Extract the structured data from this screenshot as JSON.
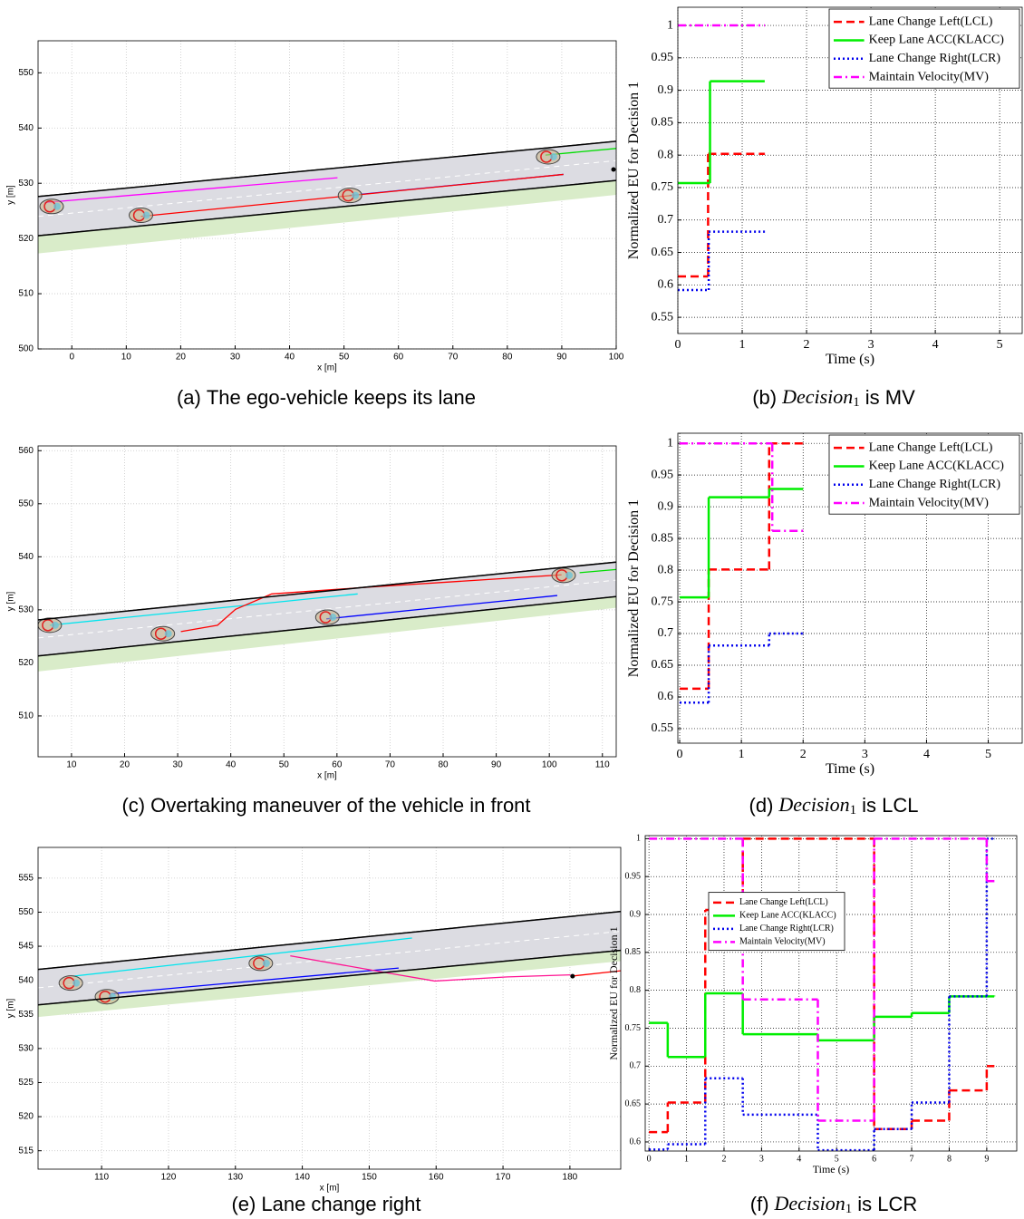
{
  "chart_data": [
    {
      "type": "trajectory",
      "xlabel": "x [m]",
      "ylabel": "y [m]",
      "caption": {
        "label": "(a)",
        "text": "The ego-vehicle keeps its lane"
      },
      "xlim": [
        -6.2,
        100
      ],
      "ylim": [
        500,
        555.8
      ],
      "xticks": [
        0,
        10,
        20,
        30,
        40,
        50,
        60,
        70,
        80,
        90,
        100
      ],
      "yticks": [
        500,
        510,
        520,
        530,
        540,
        550
      ],
      "grid": true,
      "series": [
        {
          "color": "#000000",
          "x": [
            -6.2,
            100
          ],
          "y": [
            527.6,
            537.6
          ]
        },
        {
          "color": "#000000",
          "fill": "#dcdce2",
          "x": [
            -6.2,
            100
          ],
          "y": [
            520.5,
            530.5
          ]
        },
        {
          "color": "#d9ecc9",
          "fill": "#d9ecc9",
          "x": [
            -6.2,
            100
          ],
          "y": [
            517.4,
            528
          ]
        },
        {
          "color": "#ffffff",
          "dash": "dash",
          "x": [
            -6.2,
            100
          ],
          "y": [
            524,
            534.1
          ]
        },
        {
          "color": "#ff00ff",
          "x": [
            -5,
            48.8
          ],
          "y": [
            526.5,
            531
          ]
        },
        {
          "color": "#0000ff",
          "x": [
            51,
            90.3
          ],
          "y": [
            527.8,
            531.6
          ]
        },
        {
          "color": "#ff0000",
          "x": [
            12.7,
            90.3
          ],
          "y": [
            524,
            531.6
          ]
        },
        {
          "color": "#00dd00",
          "x": [
            87,
            100
          ],
          "y": [
            535.1,
            536.3
          ]
        },
        {
          "kind": "vehicles",
          "color": "#e02020",
          "x": [
            -3.7,
            12.7,
            51.1,
            87.5
          ],
          "y": [
            525.8,
            524.2,
            527.8,
            534.8
          ]
        },
        {
          "kind": "points",
          "color": "#000000",
          "x": [
            99.5
          ],
          "y": [
            532.5
          ]
        }
      ]
    },
    {
      "type": "step",
      "xlabel": "Time (s)",
      "ylabel": "Normalized EU for Decision 1",
      "caption": {
        "label": "(b)",
        "var": "Decision",
        "sub": "1",
        "text": "is MV"
      },
      "xlim": [
        0,
        5.35
      ],
      "ylim": [
        0.525,
        1.028
      ],
      "xticks": [
        0,
        1,
        2,
        3,
        4,
        5
      ],
      "yticks": [
        0.55,
        0.6,
        0.65,
        0.7,
        0.75,
        0.8,
        0.85,
        0.9,
        0.95,
        1
      ],
      "grid": true,
      "legend": "upper right",
      "series": [
        {
          "name": "Lane Change Left(LCL)",
          "color": "#ff0000",
          "dash": "dash",
          "x": [
            0,
            0.47,
            1.35
          ],
          "values": [
            0.613,
            0.802,
            0.802
          ]
        },
        {
          "name": "Keep Lane ACC(KLACC)",
          "color": "#00ee00",
          "dash": "solid",
          "x": [
            0,
            0.5,
            1.35
          ],
          "values": [
            0.757,
            0.914,
            0.914
          ]
        },
        {
          "name": "Lane Change Right(LCR)",
          "color": "#0000ee",
          "dash": "dot",
          "x": [
            0,
            0.48,
            1.35
          ],
          "values": [
            0.592,
            0.682,
            0.682
          ]
        },
        {
          "name": "Maintain Velocity(MV)",
          "color": "#ff00ff",
          "dash": "dashdot",
          "x": [
            0,
            1.35
          ],
          "values": [
            1,
            1
          ]
        }
      ]
    },
    {
      "type": "trajectory",
      "xlabel": "x [m]",
      "ylabel": "y [m]",
      "caption": {
        "label": "(c)",
        "text": "Overtaking maneuver of the vehicle in front"
      },
      "xlim": [
        3.7,
        112.6
      ],
      "ylim": [
        502.3,
        560.9
      ],
      "xticks": [
        10,
        20,
        30,
        40,
        50,
        60,
        70,
        80,
        90,
        100,
        110
      ],
      "yticks": [
        510,
        520,
        530,
        540,
        550,
        560
      ],
      "grid": true,
      "series": [
        {
          "color": "#000000",
          "x": [
            3.7,
            112.6
          ],
          "y": [
            528.1,
            539
          ]
        },
        {
          "color": "#000000",
          "fill": "#dcdce2",
          "x": [
            3.7,
            112.6
          ],
          "y": [
            521.3,
            532.5
          ]
        },
        {
          "color": "#d9ecc9",
          "fill": "#d9ecc9",
          "x": [
            3.7,
            112.6
          ],
          "y": [
            518.5,
            530.5
          ]
        },
        {
          "color": "#ffffff",
          "dash": "dash",
          "x": [
            3.7,
            112.6
          ],
          "y": [
            524.7,
            535.6
          ]
        },
        {
          "color": "#00e5ee",
          "x": [
            5.9,
            63.9
          ],
          "y": [
            527.1,
            533
          ]
        },
        {
          "color": "#0000ff",
          "x": [
            58,
            101.5
          ],
          "y": [
            528.3,
            532.7
          ]
        },
        {
          "color": "#ff0000",
          "x": [
            30.6,
            37.5,
            40.9,
            47.7,
            64.8,
            102.3
          ],
          "y": [
            525.9,
            527.1,
            530.1,
            533,
            534.2,
            536.6
          ]
        },
        {
          "color": "#00dd00",
          "x": [
            105.7,
            112.6
          ],
          "y": [
            537,
            537.6
          ]
        },
        {
          "kind": "vehicles",
          "color": "#e02020",
          "x": [
            5.9,
            27.2,
            58.2,
            102.7
          ],
          "y": [
            527.1,
            525.5,
            528.6,
            536.5
          ]
        }
      ]
    },
    {
      "type": "step",
      "xlabel": "Time (s)",
      "ylabel": "Normalized EU for Decision 1",
      "caption": {
        "label": "(d)",
        "var": "Decision",
        "sub": "1",
        "text": "is LCL"
      },
      "xlim": [
        -0.03,
        5.55
      ],
      "ylim": [
        0.527,
        1.016
      ],
      "xticks": [
        0,
        1,
        2,
        3,
        4,
        5
      ],
      "yticks": [
        0.55,
        0.6,
        0.65,
        0.7,
        0.75,
        0.8,
        0.85,
        0.9,
        0.95,
        1
      ],
      "grid": true,
      "legend": "upper right",
      "series": [
        {
          "name": "Lane Change Left(LCL)",
          "color": "#ff0000",
          "dash": "dash",
          "x": [
            0,
            0.47,
            1.45,
            2
          ],
          "values": [
            0.613,
            0.801,
            1,
            1
          ]
        },
        {
          "name": "Keep Lane ACC(KLACC)",
          "color": "#00ee00",
          "dash": "solid",
          "x": [
            0,
            0.47,
            1.45,
            2
          ],
          "values": [
            0.757,
            0.915,
            0.928,
            0.928
          ]
        },
        {
          "name": "Lane Change Right(LCR)",
          "color": "#0000ee",
          "dash": "dot",
          "x": [
            0,
            0.47,
            1.45,
            2
          ],
          "values": [
            0.591,
            0.681,
            0.7,
            0.7
          ]
        },
        {
          "name": "Maintain Velocity(MV)",
          "color": "#ff00ff",
          "dash": "dashdot",
          "x": [
            0,
            1.5,
            2
          ],
          "values": [
            1,
            0.862,
            0.862
          ]
        }
      ]
    },
    {
      "type": "trajectory",
      "xlabel": "x [m]",
      "ylabel": "y [m]",
      "caption": {
        "label": "(e)",
        "text": "Lane change right"
      },
      "xlim": [
        100.5,
        187.6
      ],
      "ylim": [
        512.3,
        559.5
      ],
      "xticks": [
        110,
        120,
        130,
        140,
        150,
        160,
        170,
        180
      ],
      "yticks": [
        515,
        520,
        525,
        530,
        535,
        540,
        545,
        550,
        555
      ],
      "grid": true,
      "series": [
        {
          "color": "#000000",
          "x": [
            100.5,
            187.6
          ],
          "y": [
            541.6,
            550.1
          ]
        },
        {
          "color": "#000000",
          "fill": "#dcdce2",
          "x": [
            100.5,
            187.6
          ],
          "y": [
            536.4,
            544.4
          ]
        },
        {
          "color": "#d9ecc9",
          "fill": "#d9ecc9",
          "x": [
            100.5,
            187.6
          ],
          "y": [
            534.7,
            542.9
          ]
        },
        {
          "color": "#ffffff",
          "dash": "dash",
          "x": [
            100.5,
            187.6
          ],
          "y": [
            538.9,
            547.2
          ]
        },
        {
          "color": "#00e5ee",
          "x": [
            105.7,
            156.4
          ],
          "y": [
            540.6,
            546.2
          ]
        },
        {
          "color": "#0000ff",
          "x": [
            111.1,
            154.4
          ],
          "y": [
            538,
            541.8
          ]
        },
        {
          "color": "#ff1493",
          "x": [
            138.2,
            154.4,
            159.8,
            170.7,
            180.1
          ],
          "y": [
            543.6,
            540.8,
            539.9,
            540.5,
            540.8
          ]
        },
        {
          "color": "#ff0000",
          "x": [
            180.1,
            187.6
          ],
          "y": [
            540.6,
            541.4
          ]
        },
        {
          "kind": "vehicles",
          "color": "#e02020",
          "x": [
            105.4,
            110.8,
            133.8
          ],
          "y": [
            539.6,
            537.6,
            542.5
          ]
        },
        {
          "kind": "points",
          "color": "#000000",
          "x": [
            180.4
          ],
          "y": [
            540.6
          ]
        }
      ]
    },
    {
      "type": "step",
      "xlabel": "Time (s)",
      "ylabel": "Normalized EU for Decision 1",
      "caption": {
        "label": "(f)",
        "var": "Decision",
        "sub": "1",
        "text": "is LCR"
      },
      "xlim": [
        -0.1,
        9.8
      ],
      "ylim": [
        0.588,
        1.004
      ],
      "xticks": [
        0,
        1,
        2,
        3,
        4,
        5,
        6,
        7,
        8,
        9
      ],
      "yticks": [
        0.6,
        0.65,
        0.7,
        0.75,
        0.8,
        0.85,
        0.9,
        0.95,
        1
      ],
      "grid": true,
      "legend": "upper center",
      "series": [
        {
          "name": "Lane Change Left(LCL)",
          "color": "#ff0000",
          "dash": "dash",
          "x": [
            0,
            0.5,
            1.5,
            2.5,
            6,
            7,
            8,
            9,
            9.2
          ],
          "values": [
            0.613,
            0.652,
            0.906,
            1,
            0.617,
            0.628,
            0.668,
            0.7,
            0.7
          ]
        },
        {
          "name": "Keep Lane ACC(KLACC)",
          "color": "#00ee00",
          "dash": "solid",
          "x": [
            0,
            0.5,
            1.5,
            2.5,
            4.5,
            6,
            7,
            8,
            9.2
          ],
          "values": [
            0.757,
            0.712,
            0.796,
            0.742,
            0.734,
            0.765,
            0.77,
            0.792,
            0.793
          ]
        },
        {
          "name": "Lane Change Right(LCR)",
          "color": "#0000ee",
          "dash": "dot",
          "x": [
            0,
            0.5,
            1.5,
            2.5,
            4.5,
            6,
            7,
            8,
            9,
            9.2
          ],
          "values": [
            0.59,
            0.597,
            0.684,
            0.636,
            0.589,
            0.617,
            0.652,
            0.792,
            1,
            1
          ]
        },
        {
          "name": "Maintain Velocity(MV)",
          "color": "#ff00ff",
          "dash": "dashdot",
          "x": [
            0,
            2.5,
            4.5,
            6,
            9,
            9.2
          ],
          "values": [
            1,
            0.788,
            0.628,
            1,
            0.944,
            0.944
          ]
        }
      ]
    }
  ]
}
